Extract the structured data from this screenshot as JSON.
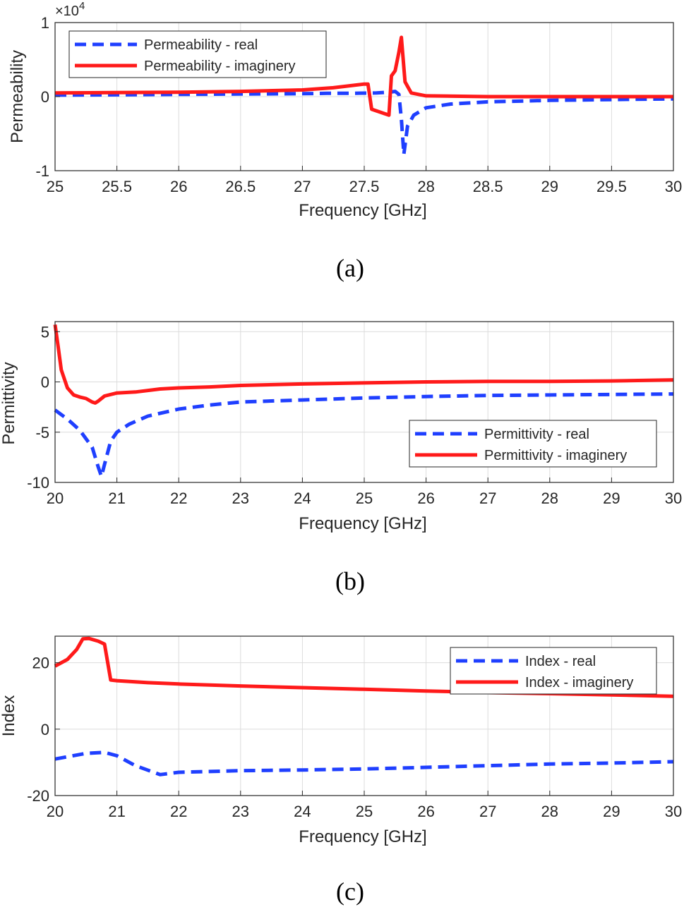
{
  "chart_data": [
    {
      "type": "line",
      "panel_caption": "(a)",
      "title": "",
      "xlabel": "Frequency [GHz]",
      "ylabel": "Permeability",
      "xlim": [
        25,
        30
      ],
      "ylim": [
        -1,
        1
      ],
      "y_multiplier": "×10",
      "y_multiplier_exponent": "4",
      "xticks": [
        25,
        25.5,
        26,
        26.5,
        27,
        27.5,
        28,
        28.5,
        29,
        29.5,
        30
      ],
      "xtick_labels": [
        "25",
        "25.5",
        "26",
        "26.5",
        "27",
        "27.5",
        "28",
        "28.5",
        "29",
        "29.5",
        "30"
      ],
      "yticks": [
        -1,
        0,
        1
      ],
      "ytick_labels": [
        "-1",
        "0",
        "1"
      ],
      "grid": true,
      "legend_position": "top-left",
      "series": [
        {
          "name": "Permeability - real",
          "color": "#1f3fff",
          "style": "dashed",
          "x": [
            25,
            25.5,
            26,
            26.5,
            27,
            27.2,
            27.4,
            27.6,
            27.7,
            27.75,
            27.78,
            27.8,
            27.82,
            27.85,
            27.9,
            28,
            28.2,
            28.5,
            29,
            29.5,
            30
          ],
          "y": [
            0.02,
            0.025,
            0.03,
            0.035,
            0.04,
            0.045,
            0.045,
            0.05,
            0.06,
            0.07,
            0.03,
            -0.3,
            -0.78,
            -0.4,
            -0.25,
            -0.15,
            -0.1,
            -0.07,
            -0.05,
            -0.04,
            -0.03
          ]
        },
        {
          "name": "Permeability - imaginery",
          "color": "#ff1a1a",
          "style": "solid",
          "x": [
            25,
            25.5,
            26,
            26.5,
            27,
            27.25,
            27.5,
            27.53,
            27.56,
            27.7,
            27.72,
            27.75,
            27.78,
            27.8,
            27.83,
            27.88,
            28,
            28.5,
            29,
            29.5,
            30
          ],
          "y": [
            0.05,
            0.055,
            0.06,
            0.07,
            0.09,
            0.12,
            0.17,
            0.17,
            -0.17,
            -0.25,
            0.28,
            0.35,
            0.6,
            0.8,
            0.2,
            0.05,
            0.01,
            0.0,
            0.0,
            0.0,
            0.0
          ]
        }
      ]
    },
    {
      "type": "line",
      "panel_caption": "(b)",
      "title": "",
      "xlabel": "Frequency [GHz]",
      "ylabel": "Permittivity",
      "xlim": [
        20,
        30
      ],
      "ylim": [
        -10,
        6
      ],
      "xticks": [
        20,
        21,
        22,
        23,
        24,
        25,
        26,
        27,
        28,
        29,
        30
      ],
      "xtick_labels": [
        "20",
        "21",
        "22",
        "23",
        "24",
        "25",
        "26",
        "27",
        "28",
        "29",
        "30"
      ],
      "yticks": [
        -10,
        -5,
        0,
        5
      ],
      "ytick_labels": [
        "-10",
        "-5",
        "0",
        "5"
      ],
      "grid": true,
      "legend_position": "bottom-right",
      "series": [
        {
          "name": "Permittivity - real",
          "color": "#1f3fff",
          "style": "dashed",
          "x": [
            20,
            20.2,
            20.4,
            20.6,
            20.7,
            20.75,
            20.8,
            20.9,
            21,
            21.2,
            21.5,
            22,
            22.5,
            23,
            24,
            25,
            26,
            27,
            28,
            29,
            30
          ],
          "y": [
            -2.8,
            -3.7,
            -4.8,
            -6.5,
            -8.5,
            -9.4,
            -8.2,
            -5.9,
            -5.0,
            -4.2,
            -3.4,
            -2.7,
            -2.3,
            -2.0,
            -1.8,
            -1.6,
            -1.45,
            -1.35,
            -1.3,
            -1.25,
            -1.2
          ]
        },
        {
          "name": "Permittivity - imaginery",
          "color": "#ff1a1a",
          "style": "solid",
          "x": [
            20,
            20.05,
            20.1,
            20.2,
            20.3,
            20.4,
            20.5,
            20.6,
            20.65,
            20.7,
            20.8,
            21,
            21.3,
            21.7,
            22,
            22.5,
            23,
            24,
            25,
            26,
            27,
            28,
            29,
            30
          ],
          "y": [
            5.7,
            3.5,
            1.2,
            -0.6,
            -1.3,
            -1.5,
            -1.65,
            -2.0,
            -2.1,
            -1.9,
            -1.4,
            -1.1,
            -1.0,
            -0.7,
            -0.6,
            -0.5,
            -0.35,
            -0.2,
            -0.1,
            0.0,
            0.05,
            0.05,
            0.1,
            0.2
          ]
        }
      ]
    },
    {
      "type": "line",
      "panel_caption": "(c)",
      "title": "",
      "xlabel": "Frequency [GHz]",
      "ylabel": "Index",
      "xlim": [
        20,
        30
      ],
      "ylim": [
        -20,
        28
      ],
      "xticks": [
        20,
        21,
        22,
        23,
        24,
        25,
        26,
        27,
        28,
        29,
        30
      ],
      "xtick_labels": [
        "20",
        "21",
        "22",
        "23",
        "24",
        "25",
        "26",
        "27",
        "28",
        "29",
        "30"
      ],
      "yticks": [
        -20,
        0,
        20
      ],
      "ytick_labels": [
        "-20",
        "0",
        "20"
      ],
      "grid": true,
      "legend_position": "top-right",
      "series": [
        {
          "name": "Index - real",
          "color": "#1f3fff",
          "style": "dashed",
          "x": [
            20,
            20.5,
            20.8,
            21,
            21.3,
            21.7,
            22,
            23,
            24,
            25,
            26,
            27,
            28,
            29,
            30
          ],
          "y": [
            -9,
            -7.3,
            -7.0,
            -8.0,
            -11.0,
            -13.7,
            -13.0,
            -12.5,
            -12.3,
            -12.0,
            -11.5,
            -11.0,
            -10.5,
            -10.2,
            -9.8
          ]
        },
        {
          "name": "Index - imaginery",
          "color": "#ff1a1a",
          "style": "solid",
          "x": [
            20,
            20.2,
            20.35,
            20.45,
            20.55,
            20.7,
            20.8,
            20.9,
            21,
            21.5,
            22,
            23,
            24,
            25,
            26,
            27,
            28,
            29,
            30
          ],
          "y": [
            19,
            21,
            24,
            27.2,
            27.3,
            26.5,
            25.6,
            14.8,
            14.6,
            14.0,
            13.6,
            13.0,
            12.5,
            12.0,
            11.5,
            11.0,
            10.7,
            10.3,
            9.9
          ]
        }
      ]
    }
  ]
}
